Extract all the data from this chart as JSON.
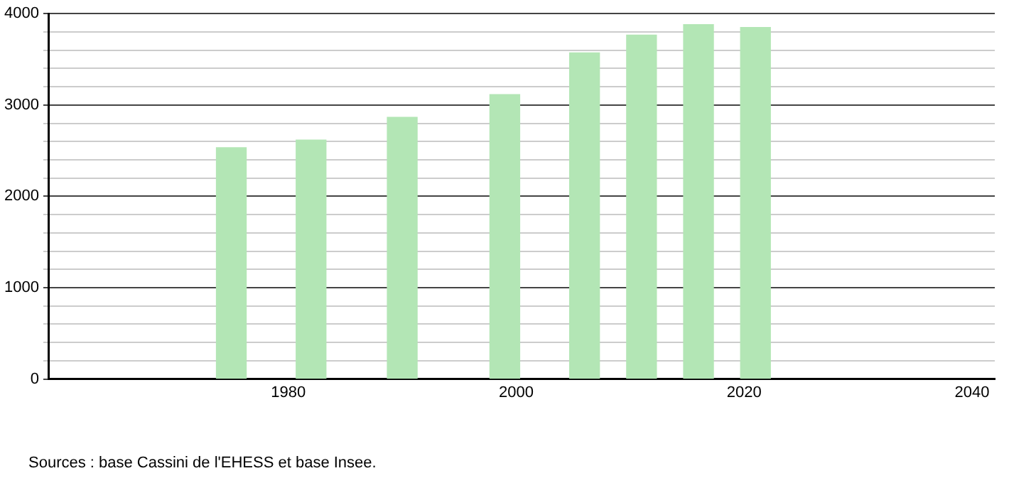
{
  "chart_data": {
    "type": "bar",
    "x": [
      1975,
      1982,
      1990,
      1999,
      2006,
      2011,
      2016,
      2021
    ],
    "values": [
      2533,
      2616,
      2865,
      3114,
      3571,
      3765,
      3880,
      3848
    ],
    "color": "#b3e6b5",
    "xlim": [
      1959,
      2042
    ],
    "xticks": [
      1980,
      2000,
      2020,
      2040
    ],
    "ylim": [
      0,
      4000
    ],
    "yticks": [
      0,
      {
        "value": 200,
        "label": null
      },
      {
        "value": 400,
        "label": null
      },
      {
        "value": 600,
        "label": null
      },
      {
        "value": 800,
        "label": null
      },
      1000,
      {
        "value": 1200,
        "label": null
      },
      {
        "value": 1400,
        "label": null
      },
      {
        "value": 1600,
        "label": null
      },
      {
        "value": 1800,
        "label": null
      },
      2000,
      {
        "value": 2200,
        "label": null
      },
      {
        "value": 2400,
        "label": null
      },
      {
        "value": 2600,
        "label": null
      },
      {
        "value": 2800,
        "label": null
      },
      3000,
      {
        "value": 3200,
        "label": null
      },
      {
        "value": 3400,
        "label": null
      },
      {
        "value": 3600,
        "label": null
      },
      {
        "value": 3800,
        "label": null
      },
      4000
    ],
    "grid": "y",
    "legend": false,
    "annotations": [
      "Sources : base Cassini de l'EHESS et base Insee."
    ]
  }
}
